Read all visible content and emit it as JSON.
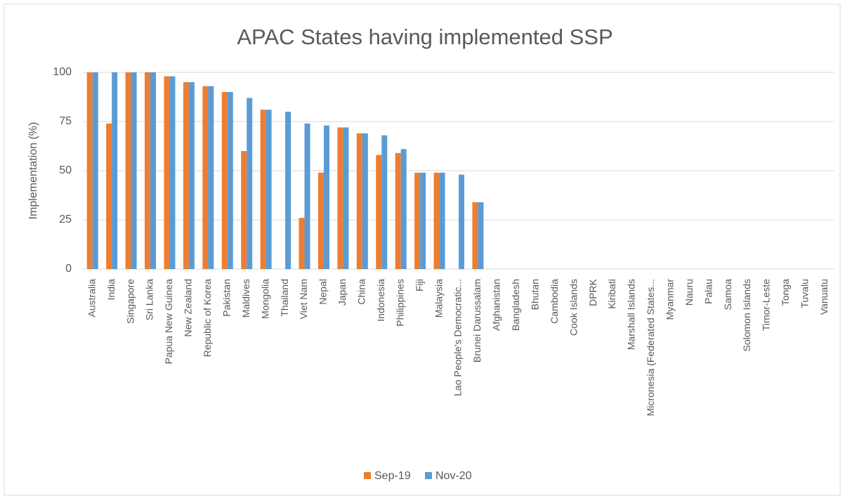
{
  "chart_data": {
    "type": "bar",
    "title": "APAC States having implemented SSP",
    "y_label": "Implementation (%)",
    "categories": [
      "Australia",
      "India",
      "Singapore",
      "Sri Lanka",
      "Papua New Guinea",
      "New Zealand",
      "Republic of Korea",
      "Pakistan",
      "Maldives",
      "Mongolia",
      "Thailand",
      "Viet Nam",
      "Nepal",
      "Japan",
      "China",
      "Indonesia",
      "Philippines",
      "Fiji",
      "Malaysia",
      "Lao People's Democratic...",
      "Brunei Darussalam",
      "Afghanistan",
      "Bangladesh",
      "Bhutan",
      "Cambodia",
      "Cook Islands",
      "DPRK",
      "Kiribati",
      "Marshall Islands",
      "Micronesia (Federated States...",
      "Myanmar",
      "Nauru",
      "Palau",
      "Samoa",
      "Solomon Islands",
      "Timor-Leste",
      "Tonga",
      "Tuvalu",
      "Vanuatu"
    ],
    "series": [
      {
        "name": "Sep-19",
        "color": "#ED7D31",
        "values": [
          100,
          74,
          100,
          100,
          98,
          95,
          93,
          90,
          60,
          81,
          null,
          26,
          49,
          72,
          69,
          58,
          59,
          49,
          49,
          null,
          34,
          null,
          null,
          null,
          null,
          null,
          null,
          null,
          null,
          null,
          null,
          null,
          null,
          null,
          null,
          null,
          null,
          null,
          null
        ]
      },
      {
        "name": "Nov-20",
        "color": "#5B9BD5",
        "values": [
          100,
          100,
          100,
          100,
          98,
          95,
          93,
          90,
          87,
          81,
          80,
          74,
          73,
          72,
          69,
          68,
          61,
          49,
          49,
          48,
          34,
          null,
          null,
          null,
          null,
          null,
          null,
          null,
          null,
          null,
          null,
          null,
          null,
          null,
          null,
          null,
          null,
          null,
          null
        ]
      }
    ],
    "ylim": [
      0,
      100
    ],
    "yticks": [
      0,
      25,
      50,
      75,
      100
    ],
    "grid": true,
    "legend": "bottom"
  }
}
